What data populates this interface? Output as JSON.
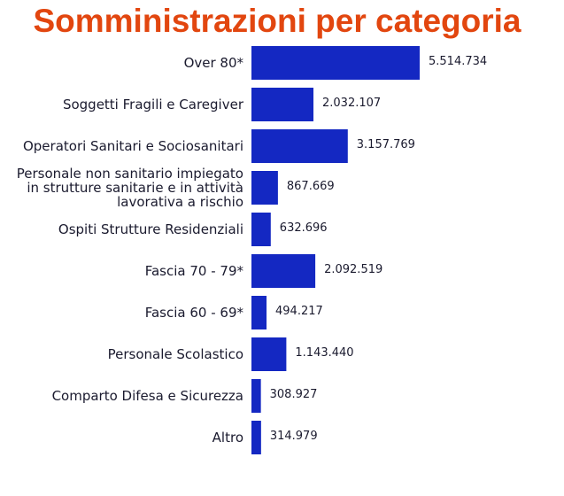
{
  "chart_data": {
    "type": "bar",
    "orientation": "horizontal",
    "title": "Somministrazioni per categoria",
    "categories": [
      [
        "Over 80*"
      ],
      [
        "Soggetti Fragili e Caregiver"
      ],
      [
        "Operatori Sanitari e Sociosanitari"
      ],
      [
        "Personale non sanitario impiegato",
        "in strutture sanitarie e in attività",
        "lavorativa a rischio"
      ],
      [
        "Ospiti Strutture Residenziali"
      ],
      [
        "Fascia 70 - 79*"
      ],
      [
        "Fascia 60 - 69*"
      ],
      [
        "Personale Scolastico"
      ],
      [
        "Comparto Difesa e Sicurezza"
      ],
      [
        "Altro"
      ]
    ],
    "values": [
      5514734,
      2032107,
      3157769,
      867669,
      632696,
      2092519,
      494217,
      1143440,
      308927,
      314979
    ],
    "value_labels": [
      "5.514.734",
      "2.032.107",
      "3.157.769",
      "867.669",
      "632.696",
      "2.092.519",
      "494.217",
      "1.143.440",
      "308.927",
      "314.979"
    ],
    "colors": {
      "bar": "#1428c2",
      "title": "#e2460f",
      "label": "#1a1a2e"
    }
  }
}
